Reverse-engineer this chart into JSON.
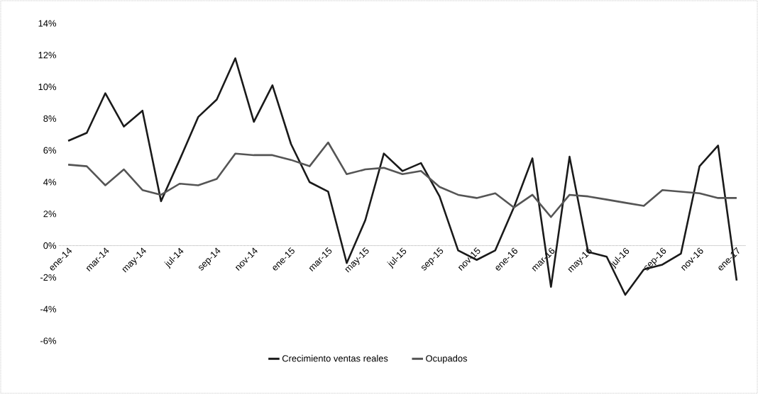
{
  "chart_data": {
    "type": "line",
    "categories": [
      "ene-14",
      null,
      "mar-14",
      null,
      "may-14",
      null,
      "jul-14",
      null,
      "sep-14",
      null,
      "nov-14",
      null,
      "ene-15",
      null,
      "mar-15",
      null,
      "may-15",
      null,
      "jul-15",
      null,
      "sep-15",
      null,
      "nov-15",
      null,
      "ene-16",
      null,
      "mar-16",
      null,
      "may-16",
      null,
      "jul-16",
      null,
      "sep-16",
      null,
      "nov-16",
      null,
      "ene-17"
    ],
    "series": [
      {
        "name": "Crecimiento ventas reales",
        "color": "#1a1a1a",
        "values": [
          6.6,
          7.1,
          9.6,
          7.5,
          8.5,
          2.8,
          5.4,
          8.1,
          9.2,
          11.8,
          7.8,
          10.1,
          6.4,
          4.0,
          3.4,
          -1.1,
          1.6,
          5.8,
          4.7,
          5.2,
          3.1,
          -0.3,
          -0.9,
          -0.3,
          2.4,
          5.5,
          -2.6,
          5.6,
          -0.4,
          -0.7,
          -3.1,
          -1.5,
          -1.2,
          -0.5,
          5.0,
          6.3,
          -2.2
        ]
      },
      {
        "name": "Ocupados",
        "color": "#555555",
        "values": [
          5.1,
          5.0,
          3.8,
          4.8,
          3.5,
          3.2,
          3.9,
          3.8,
          4.2,
          5.8,
          5.7,
          5.7,
          5.4,
          5.0,
          6.5,
          4.5,
          4.8,
          4.9,
          4.5,
          4.7,
          3.7,
          3.2,
          3.0,
          3.3,
          2.4,
          3.2,
          1.8,
          3.2,
          3.1,
          2.9,
          2.7,
          2.5,
          3.5,
          3.4,
          3.3,
          3.0,
          3.0
        ]
      }
    ],
    "ylim": [
      -6,
      14
    ],
    "yticks": [
      {
        "value": -6,
        "label": "-6%"
      },
      {
        "value": -4,
        "label": "-4%"
      },
      {
        "value": -2,
        "label": "-2%"
      },
      {
        "value": 0,
        "label": "0%"
      },
      {
        "value": 2,
        "label": "2%"
      },
      {
        "value": 4,
        "label": "4%"
      },
      {
        "value": 6,
        "label": "6%"
      },
      {
        "value": 8,
        "label": "8%"
      },
      {
        "value": 10,
        "label": "10%"
      },
      {
        "value": 12,
        "label": "12%"
      },
      {
        "value": 14,
        "label": "14%"
      }
    ],
    "legend": "bottom"
  }
}
